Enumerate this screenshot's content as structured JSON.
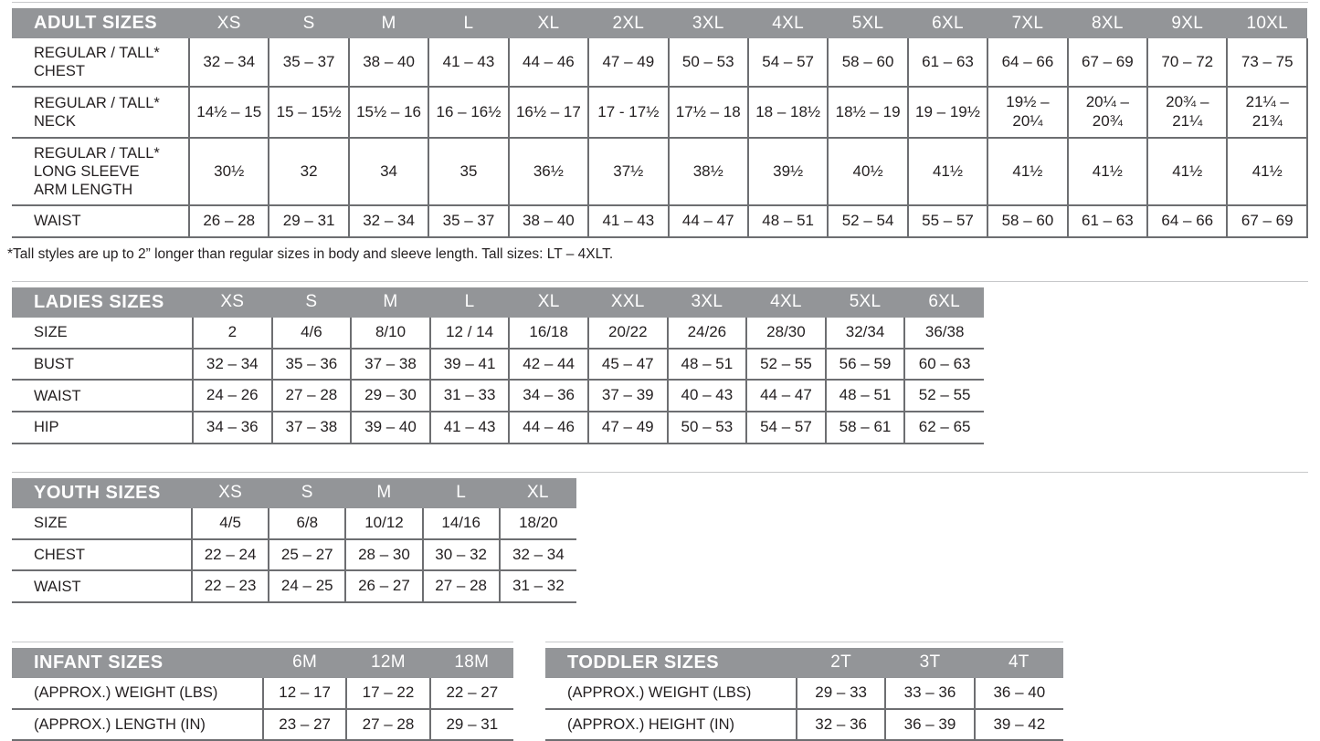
{
  "colors": {
    "header_bg": "#939598",
    "header_text": "#ffffff",
    "body_text": "#231f20",
    "border": "#6d6e71",
    "hairline": "#c7c8ca"
  },
  "footnote": "*Tall styles are up to 2” longer than regular sizes in body and sleeve length. Tall sizes: LT – 4XLT.",
  "tables": [
    {
      "id": "adult",
      "title": "ADULT SIZES",
      "columns": [
        "XS",
        "S",
        "M",
        "L",
        "XL",
        "2XL",
        "3XL",
        "4XL",
        "5XL",
        "6XL",
        "7XL",
        "8XL",
        "9XL",
        "10XL"
      ],
      "rows": [
        {
          "label": "REGULAR / TALL*\nCHEST",
          "values": [
            "32 – 34",
            "35 – 37",
            "38 – 40",
            "41 – 43",
            "44 – 46",
            "47 – 49",
            "50 – 53",
            "54 – 57",
            "58 – 60",
            "61 – 63",
            "64 – 66",
            "67 – 69",
            "70 – 72",
            "73 – 75"
          ]
        },
        {
          "label": "REGULAR / TALL*\nNECK",
          "values": [
            "14½ – 15",
            "15 – 15½",
            "15½ – 16",
            "16 – 16½",
            "16½ – 17",
            "17 - 17½",
            "17½ – 18",
            "18 – 18½",
            "18½ – 19",
            "19 – 19½",
            "19½ –\n20¼",
            "20¼ –\n20¾",
            "20¾ –\n21¼",
            "21¼ –\n21¾"
          ]
        },
        {
          "label": "REGULAR / TALL*\nLONG SLEEVE\nARM LENGTH",
          "values": [
            "30½",
            "32",
            "34",
            "35",
            "36½",
            "37½",
            "38½",
            "39½",
            "40½",
            "41½",
            "41½",
            "41½",
            "41½",
            "41½"
          ]
        },
        {
          "label": "WAIST",
          "values": [
            "26 – 28",
            "29 – 31",
            "32 – 34",
            "35 – 37",
            "38 – 40",
            "41 – 43",
            "44 – 47",
            "48 – 51",
            "52 – 54",
            "55 – 57",
            "58 – 60",
            "61 – 63",
            "64 – 66",
            "67 – 69"
          ]
        }
      ]
    },
    {
      "id": "ladies",
      "title": "LADIES SIZES",
      "columns": [
        "XS",
        "S",
        "M",
        "L",
        "XL",
        "XXL",
        "3XL",
        "4XL",
        "5XL",
        "6XL"
      ],
      "rows": [
        {
          "label": "SIZE",
          "values": [
            "2",
            "4/6",
            "8/10",
            "12 / 14",
            "16/18",
            "20/22",
            "24/26",
            "28/30",
            "32/34",
            "36/38"
          ]
        },
        {
          "label": "BUST",
          "values": [
            "32 – 34",
            "35 – 36",
            "37 – 38",
            "39 – 41",
            "42 – 44",
            "45 – 47",
            "48 – 51",
            "52 – 55",
            "56 – 59",
            "60 – 63"
          ]
        },
        {
          "label": "WAIST",
          "values": [
            "24 – 26",
            "27 – 28",
            "29 – 30",
            "31 – 33",
            "34 – 36",
            "37 – 39",
            "40 – 43",
            "44 – 47",
            "48 – 51",
            "52 – 55"
          ]
        },
        {
          "label": "HIP",
          "values": [
            "34 – 36",
            "37 – 38",
            "39 – 40",
            "41 – 43",
            "44 – 46",
            "47 – 49",
            "50 – 53",
            "54 – 57",
            "58 – 61",
            "62 – 65"
          ]
        }
      ]
    },
    {
      "id": "youth",
      "title": "YOUTH SIZES",
      "columns": [
        "XS",
        "S",
        "M",
        "L",
        "XL"
      ],
      "rows": [
        {
          "label": "SIZE",
          "values": [
            "4/5",
            "6/8",
            "10/12",
            "14/16",
            "18/20"
          ]
        },
        {
          "label": "CHEST",
          "values": [
            "22 – 24",
            "25 – 27",
            "28 – 30",
            "30 – 32",
            "32 – 34"
          ]
        },
        {
          "label": "WAIST",
          "values": [
            "22 – 23",
            "24 – 25",
            "26 – 27",
            "27 – 28",
            "31 – 32"
          ]
        }
      ]
    },
    {
      "id": "infant",
      "title": "INFANT SIZES",
      "columns": [
        "6M",
        "12M",
        "18M"
      ],
      "rows": [
        {
          "label": "(APPROX.) WEIGHT (LBS)",
          "values": [
            "12 – 17",
            "17 – 22",
            "22 – 27"
          ]
        },
        {
          "label": "(APPROX.) LENGTH (IN)",
          "values": [
            "23 – 27",
            "27 – 28",
            "29 – 31"
          ]
        }
      ]
    },
    {
      "id": "toddler",
      "title": "TODDLER SIZES",
      "columns": [
        "2T",
        "3T",
        "4T"
      ],
      "rows": [
        {
          "label": "(APPROX.) WEIGHT (LBS)",
          "values": [
            "29 – 33",
            "33 – 36",
            "36 – 40"
          ]
        },
        {
          "label": "(APPROX.) HEIGHT (IN)",
          "values": [
            "32 – 36",
            "36 – 39",
            "39 – 42"
          ]
        }
      ]
    }
  ]
}
